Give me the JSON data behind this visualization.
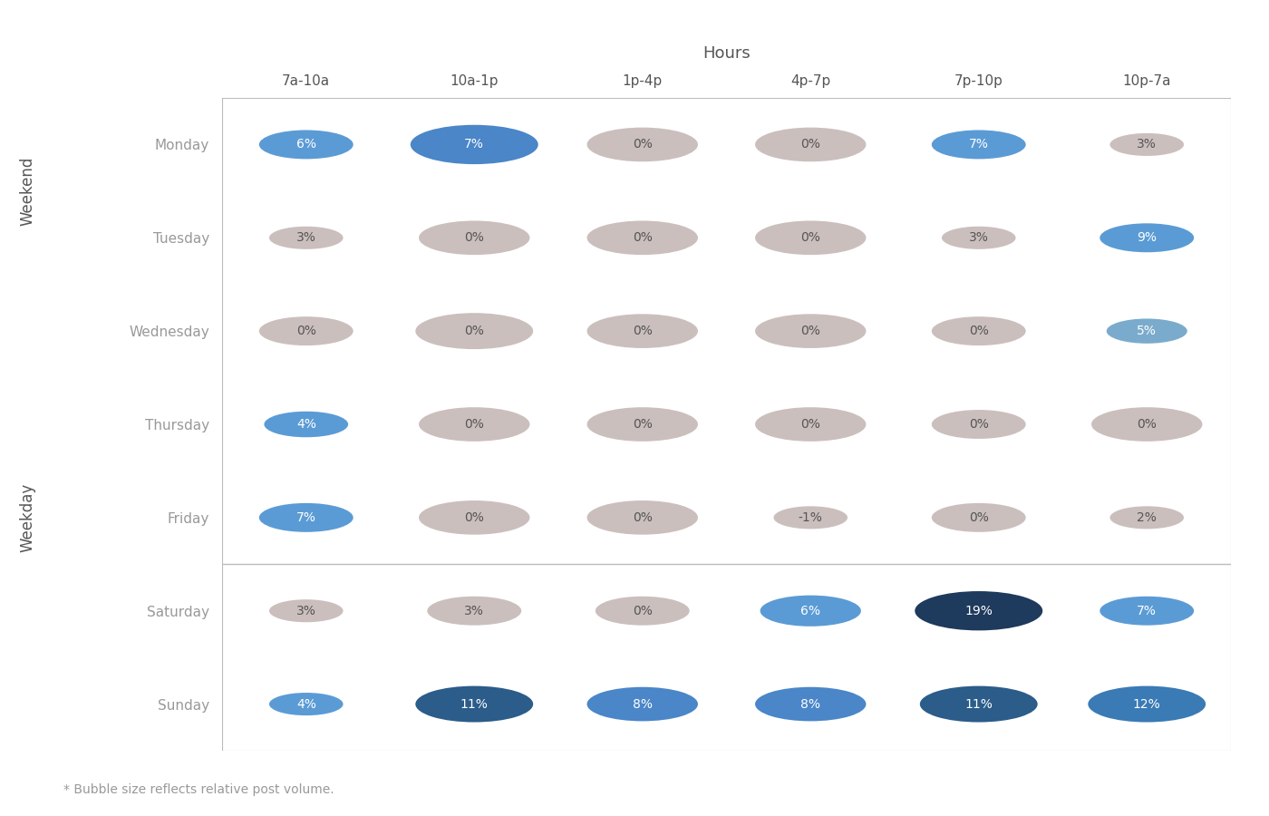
{
  "hours": [
    "7a-10a",
    "10a-1p",
    "1p-4p",
    "4p-7p",
    "7p-10p",
    "10p-7a"
  ],
  "days": [
    "Monday",
    "Tuesday",
    "Wednesday",
    "Thursday",
    "Friday",
    "Saturday",
    "Sunday"
  ],
  "values": [
    [
      6,
      7,
      0,
      0,
      7,
      3
    ],
    [
      3,
      0,
      0,
      0,
      3,
      9
    ],
    [
      0,
      0,
      0,
      0,
      0,
      5
    ],
    [
      4,
      0,
      0,
      0,
      0,
      0
    ],
    [
      7,
      0,
      0,
      -1,
      0,
      2
    ],
    [
      3,
      3,
      0,
      6,
      19,
      7
    ],
    [
      4,
      11,
      8,
      8,
      11,
      12
    ]
  ],
  "bubble_radii": [
    [
      0.28,
      0.38,
      0.33,
      0.33,
      0.28,
      0.22
    ],
    [
      0.22,
      0.33,
      0.33,
      0.33,
      0.22,
      0.28
    ],
    [
      0.28,
      0.35,
      0.33,
      0.33,
      0.28,
      0.24
    ],
    [
      0.25,
      0.33,
      0.33,
      0.33,
      0.28,
      0.33
    ],
    [
      0.28,
      0.33,
      0.33,
      0.22,
      0.28,
      0.22
    ],
    [
      0.22,
      0.28,
      0.28,
      0.3,
      0.38,
      0.28
    ],
    [
      0.22,
      0.35,
      0.33,
      0.33,
      0.35,
      0.35
    ]
  ],
  "bubble_colors": [
    [
      "#5b9bd5",
      "#4a86c8",
      "#cbbfbe",
      "#cbbfbe",
      "#5b9bd5",
      "#cbbfbe"
    ],
    [
      "#cbbfbe",
      "#cbbfbe",
      "#cbbfbe",
      "#cbbfbe",
      "#cbbfbe",
      "#5b9bd5"
    ],
    [
      "#cbbfbe",
      "#cbbfbe",
      "#cbbfbe",
      "#cbbfbe",
      "#cbbfbe",
      "#7aabcc"
    ],
    [
      "#5b9bd5",
      "#cbbfbe",
      "#cbbfbe",
      "#cbbfbe",
      "#cbbfbe",
      "#cbbfbe"
    ],
    [
      "#5b9bd5",
      "#cbbfbe",
      "#cbbfbe",
      "#cbbfbe",
      "#cbbfbe",
      "#cbbfbe"
    ],
    [
      "#cbbfbe",
      "#cbbfbe",
      "#cbbfbe",
      "#5b9bd5",
      "#1e3a5c",
      "#5b9bd5"
    ],
    [
      "#5b9bd5",
      "#2b5c8a",
      "#4a86c8",
      "#4a86c8",
      "#2b5c8a",
      "#3a7ab5"
    ]
  ],
  "text_colors": [
    [
      "#ffffff",
      "#ffffff",
      "#555555",
      "#555555",
      "#ffffff",
      "#555555"
    ],
    [
      "#555555",
      "#555555",
      "#555555",
      "#555555",
      "#555555",
      "#ffffff"
    ],
    [
      "#555555",
      "#555555",
      "#555555",
      "#555555",
      "#555555",
      "#ffffff"
    ],
    [
      "#ffffff",
      "#555555",
      "#555555",
      "#555555",
      "#555555",
      "#555555"
    ],
    [
      "#ffffff",
      "#555555",
      "#555555",
      "#555555",
      "#555555",
      "#555555"
    ],
    [
      "#555555",
      "#555555",
      "#555555",
      "#ffffff",
      "#ffffff",
      "#ffffff"
    ],
    [
      "#ffffff",
      "#ffffff",
      "#ffffff",
      "#ffffff",
      "#ffffff",
      "#ffffff"
    ]
  ],
  "hours_label": "Hours",
  "weekday_label": "Weekday",
  "weekend_label": "Weekend",
  "footnote": "* Bubble size reflects relative post volume.",
  "bg_color": "#ffffff",
  "line_color": "#bbbbbb",
  "day_label_color": "#999999",
  "hour_label_color": "#555555",
  "section_label_color": "#555555"
}
